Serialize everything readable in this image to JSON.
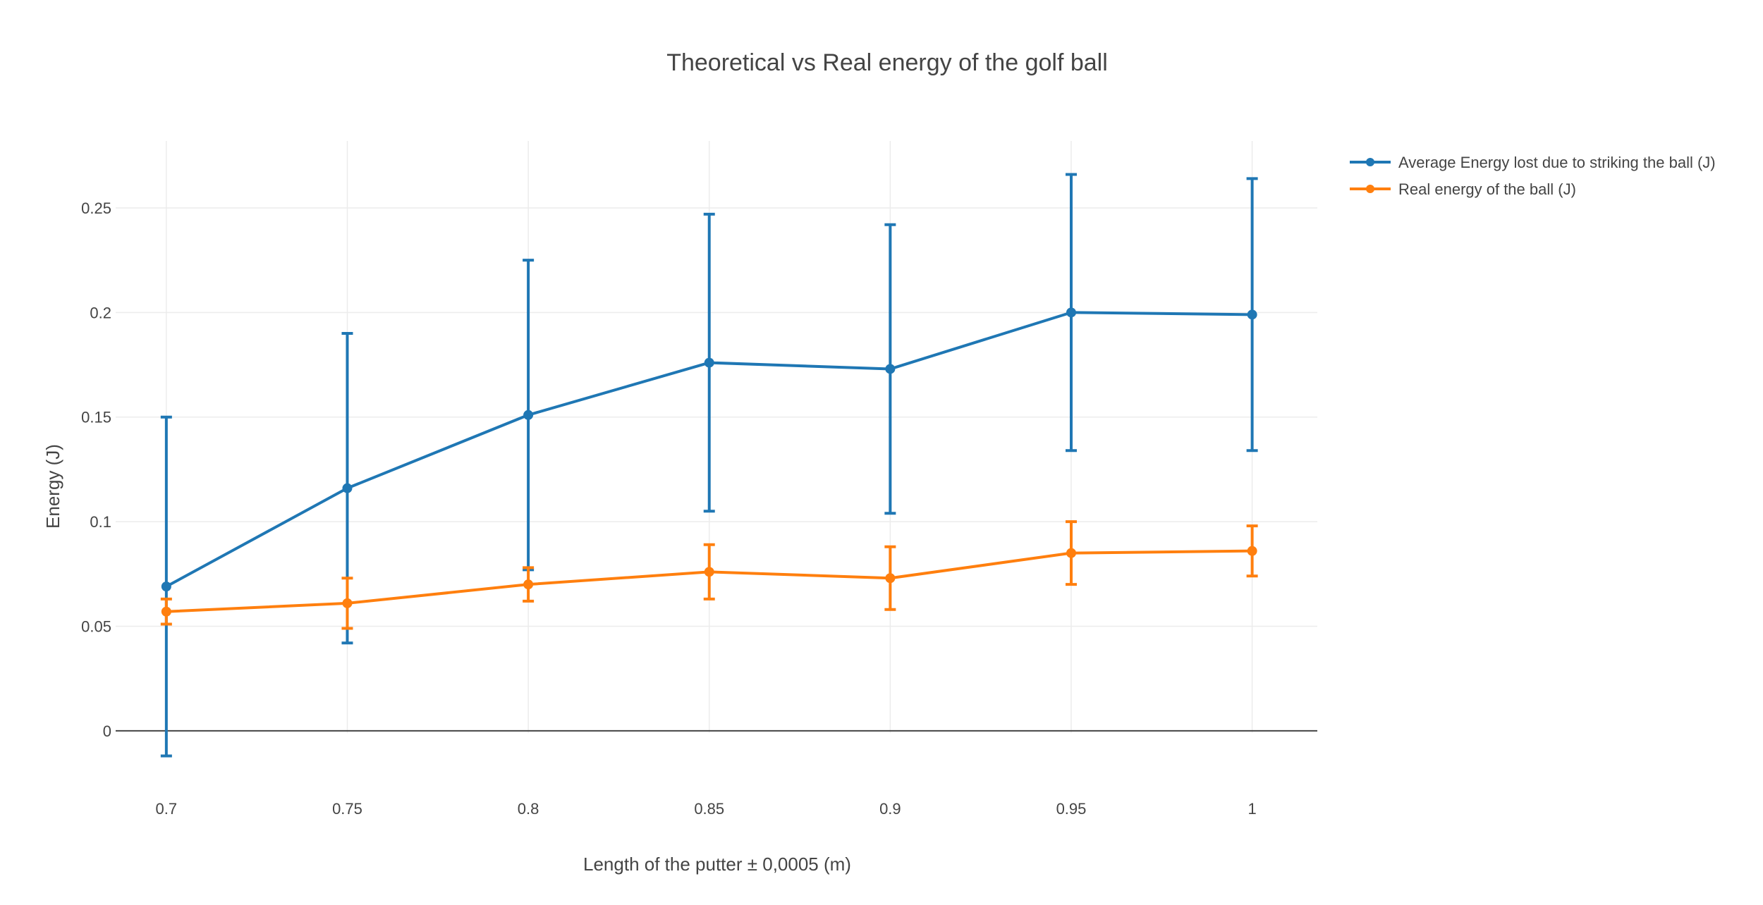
{
  "chart_data": {
    "type": "line",
    "title": "Theoretical vs Real energy of the golf ball",
    "xlabel": "Length of the putter ± 0,0005 (m)",
    "ylabel": "Energy (J)",
    "x": [
      0.7,
      0.75,
      0.8,
      0.85,
      0.9,
      0.95,
      1
    ],
    "x_tick_labels": [
      "0.7",
      "0.75",
      "0.8",
      "0.85",
      "0.9",
      "0.95",
      "1"
    ],
    "y_ticks": [
      0,
      0.05,
      0.1,
      0.15,
      0.2,
      0.25
    ],
    "y_tick_labels": [
      "0",
      "0.05",
      "0.1",
      "0.15",
      "0.2",
      "0.25"
    ],
    "xlim": [
      0.686,
      1.018
    ],
    "ylim": [
      -0.028,
      0.282
    ],
    "grid": true,
    "legend_position": "top-right, outside plot",
    "series": [
      {
        "name": "Average Energy lost due to striking the ball (J)",
        "color": "#1f77b4",
        "values": [
          0.069,
          0.116,
          0.151,
          0.176,
          0.173,
          0.2,
          0.199
        ],
        "error": [
          0.081,
          0.074,
          0.074,
          0.071,
          0.069,
          0.066,
          0.065
        ]
      },
      {
        "name": "Real energy of the ball (J)",
        "color": "#ff7f0e",
        "values": [
          0.057,
          0.061,
          0.07,
          0.076,
          0.073,
          0.085,
          0.086
        ],
        "error": [
          0.006,
          0.012,
          0.008,
          0.013,
          0.015,
          0.015,
          0.012
        ]
      }
    ]
  }
}
